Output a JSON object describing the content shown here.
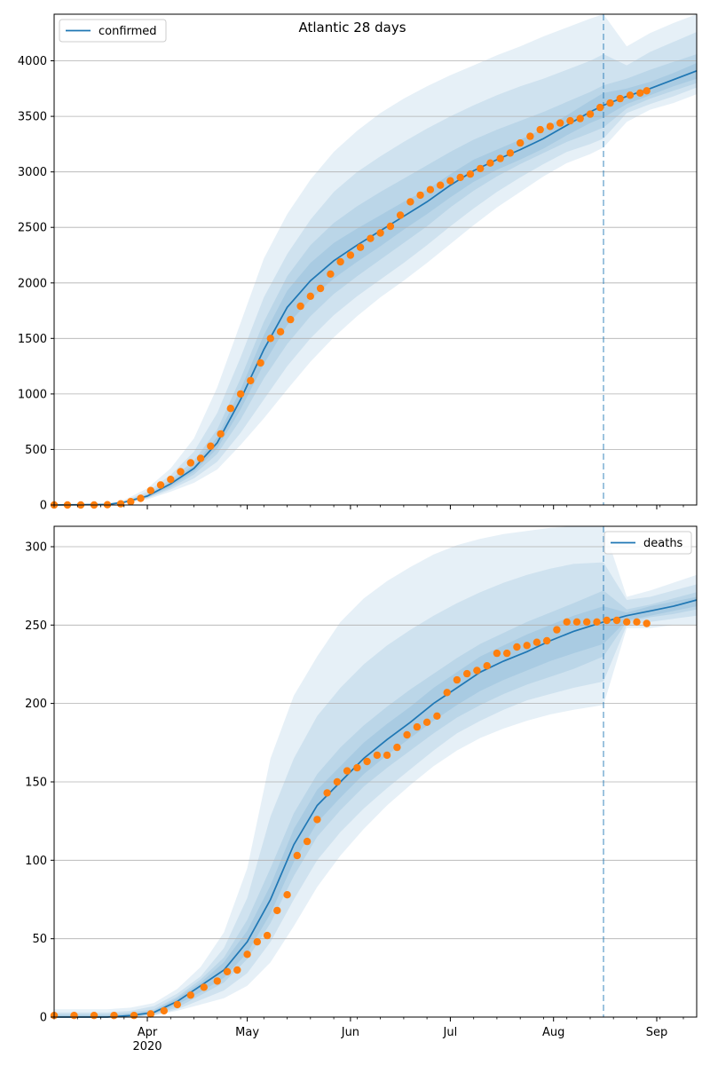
{
  "figure": {
    "title": "Atlantic 28 days"
  },
  "colors": {
    "model": "#1f77b4",
    "observed": "#ff7f0e",
    "band": "#1f77b4",
    "grid": "#b0b0b0",
    "forecast_line": "#1f77b4"
  },
  "x_axis": {
    "ticks": [
      {
        "date": "2020-04-01",
        "label": "Apr",
        "sublabel": "2020"
      },
      {
        "date": "2020-05-01",
        "label": "May",
        "sublabel": ""
      },
      {
        "date": "2020-06-01",
        "label": "Jun",
        "sublabel": ""
      },
      {
        "date": "2020-07-01",
        "label": "Jul",
        "sublabel": ""
      },
      {
        "date": "2020-08-01",
        "label": "Aug",
        "sublabel": ""
      },
      {
        "date": "2020-09-01",
        "label": "Sep",
        "sublabel": ""
      }
    ]
  },
  "chart_data": [
    {
      "type": "line",
      "title": "Atlantic 28 days",
      "xlim": [
        "2020-03-04",
        "2020-09-13"
      ],
      "ylim": [
        0,
        4420
      ],
      "yticks": [
        0,
        500,
        1000,
        1500,
        2000,
        2500,
        3000,
        3500,
        4000
      ],
      "grid": "horizontal",
      "legend": {
        "label": "confirmed",
        "placement": "top-left"
      },
      "forecast_start": "2020-08-16",
      "model": {
        "name": "confirmed",
        "x": [
          "2020-03-04",
          "2020-03-20",
          "2020-03-25",
          "2020-04-01",
          "2020-04-08",
          "2020-04-15",
          "2020-04-22",
          "2020-04-29",
          "2020-05-06",
          "2020-05-13",
          "2020-05-20",
          "2020-05-27",
          "2020-06-03",
          "2020-06-10",
          "2020-06-17",
          "2020-06-24",
          "2020-07-01",
          "2020-07-08",
          "2020-07-15",
          "2020-07-22",
          "2020-07-29",
          "2020-08-05",
          "2020-08-12",
          "2020-08-16",
          "2020-08-23",
          "2020-08-30",
          "2020-09-06",
          "2020-09-13"
        ],
        "y": [
          0,
          5,
          25,
          80,
          190,
          330,
          560,
          950,
          1400,
          1780,
          2020,
          2200,
          2340,
          2470,
          2600,
          2730,
          2880,
          3010,
          3110,
          3200,
          3300,
          3420,
          3540,
          3600,
          3680,
          3750,
          3830,
          3910
        ],
        "bands": [
          {
            "lower": [
              0,
              3,
              15,
              50,
              120,
              200,
              320,
              540,
              780,
              1040,
              1290,
              1510,
              1700,
              1870,
              2020,
              2180,
              2350,
              2520,
              2680,
              2820,
              2960,
              3080,
              3160,
              3220,
              3450,
              3560,
              3620,
              3700
            ],
            "upper": [
              0,
              10,
              45,
              150,
              330,
              600,
              1060,
              1640,
              2220,
              2620,
              2930,
              3180,
              3370,
              3530,
              3660,
              3770,
              3870,
              3960,
              4050,
              4130,
              4220,
              4300,
              4380,
              4420,
              4130,
              4250,
              4340,
              4420
            ]
          },
          {
            "lower": [
              0,
              3,
              18,
              60,
              140,
              240,
              390,
              650,
              950,
              1250,
              1500,
              1710,
              1880,
              2030,
              2180,
              2340,
              2510,
              2670,
              2820,
              2950,
              3070,
              3180,
              3250,
              3300,
              3530,
              3610,
              3680,
              3760
            ],
            "upper": [
              0,
              8,
              35,
              120,
              270,
              480,
              830,
              1330,
              1870,
              2260,
              2570,
              2820,
              3000,
              3140,
              3270,
              3390,
              3500,
              3600,
              3690,
              3770,
              3840,
              3920,
              4000,
              4060,
              3960,
              4080,
              4170,
              4260
            ]
          },
          {
            "lower": [
              0,
              4,
              20,
              65,
              155,
              275,
              460,
              770,
              1140,
              1450,
              1700,
              1900,
              2060,
              2210,
              2360,
              2510,
              2680,
              2830,
              2960,
              3070,
              3170,
              3270,
              3350,
              3400,
              3570,
              3660,
              3730,
              3800
            ],
            "upper": [
              0,
              7,
              30,
              100,
              230,
              400,
              680,
              1140,
              1650,
              2060,
              2340,
              2540,
              2690,
              2820,
              2940,
              3060,
              3180,
              3290,
              3380,
              3460,
              3540,
              3630,
              3720,
              3780,
              3840,
              3920,
              3990,
              4060
            ]
          },
          {
            "lower": [
              0,
              4,
              22,
              70,
              170,
              300,
              510,
              860,
              1270,
              1620,
              1850,
              2040,
              2190,
              2330,
              2480,
              2620,
              2770,
              2910,
              3020,
              3110,
              3210,
              3330,
              3440,
              3490,
              3610,
              3690,
              3770,
              3840
            ],
            "upper": [
              0,
              6,
              28,
              90,
              210,
              360,
              610,
              1040,
              1530,
              1930,
              2180,
              2360,
              2490,
              2610,
              2730,
              2840,
              2980,
              3110,
              3200,
              3290,
              3390,
              3510,
              3640,
              3710,
              3750,
              3810,
              3890,
              3980
            ]
          }
        ]
      },
      "observed": {
        "name": "observed",
        "x": [
          "2020-03-04",
          "2020-03-08",
          "2020-03-12",
          "2020-03-16",
          "2020-03-20",
          "2020-03-24",
          "2020-03-27",
          "2020-03-30",
          "2020-04-02",
          "2020-04-05",
          "2020-04-08",
          "2020-04-11",
          "2020-04-14",
          "2020-04-17",
          "2020-04-20",
          "2020-04-23",
          "2020-04-26",
          "2020-04-29",
          "2020-05-02",
          "2020-05-05",
          "2020-05-08",
          "2020-05-11",
          "2020-05-14",
          "2020-05-17",
          "2020-05-20",
          "2020-05-23",
          "2020-05-26",
          "2020-05-29",
          "2020-06-01",
          "2020-06-04",
          "2020-06-07",
          "2020-06-10",
          "2020-06-13",
          "2020-06-16",
          "2020-06-19",
          "2020-06-22",
          "2020-06-25",
          "2020-06-28",
          "2020-07-01",
          "2020-07-04",
          "2020-07-07",
          "2020-07-10",
          "2020-07-13",
          "2020-07-16",
          "2020-07-19",
          "2020-07-22",
          "2020-07-25",
          "2020-07-28",
          "2020-07-31",
          "2020-08-03",
          "2020-08-06",
          "2020-08-09",
          "2020-08-12",
          "2020-08-15",
          "2020-08-18",
          "2020-08-21",
          "2020-08-24",
          "2020-08-27",
          "2020-08-29"
        ],
        "y": [
          0,
          0,
          0,
          0,
          2,
          10,
          30,
          60,
          130,
          180,
          230,
          300,
          380,
          420,
          530,
          640,
          870,
          1000,
          1120,
          1280,
          1500,
          1560,
          1670,
          1790,
          1880,
          1950,
          2080,
          2190,
          2250,
          2320,
          2400,
          2450,
          2510,
          2610,
          2730,
          2790,
          2840,
          2880,
          2920,
          2950,
          2980,
          3030,
          3080,
          3120,
          3170,
          3260,
          3320,
          3380,
          3410,
          3440,
          3460,
          3480,
          3520,
          3580,
          3620,
          3660,
          3690,
          3710,
          3730
        ]
      }
    },
    {
      "type": "line",
      "title": "",
      "xlim": [
        "2020-03-04",
        "2020-09-13"
      ],
      "ylim": [
        0,
        313
      ],
      "yticks": [
        0,
        50,
        100,
        150,
        200,
        250,
        300
      ],
      "grid": "horizontal",
      "legend": {
        "label": "deaths",
        "placement": "top-right"
      },
      "forecast_start": "2020-08-16",
      "model": {
        "name": "deaths",
        "x": [
          "2020-03-04",
          "2020-03-20",
          "2020-03-27",
          "2020-04-03",
          "2020-04-10",
          "2020-04-17",
          "2020-04-24",
          "2020-05-01",
          "2020-05-08",
          "2020-05-15",
          "2020-05-22",
          "2020-05-29",
          "2020-06-05",
          "2020-06-12",
          "2020-06-19",
          "2020-06-26",
          "2020-07-03",
          "2020-07-10",
          "2020-07-17",
          "2020-07-24",
          "2020-07-31",
          "2020-08-07",
          "2020-08-16",
          "2020-08-23",
          "2020-08-30",
          "2020-09-06",
          "2020-09-13"
        ],
        "y": [
          0,
          0,
          1,
          3,
          10,
          20,
          30,
          48,
          75,
          110,
          135,
          150,
          165,
          177,
          188,
          200,
          210,
          220,
          227,
          233,
          240,
          246,
          252,
          256,
          259,
          262,
          266
        ],
        "bands": [
          {
            "lower": [
              0,
              0,
              0,
              1,
              4,
              8,
              12,
              20,
              35,
              58,
              83,
              103,
              120,
              135,
              148,
              160,
              170,
              178,
              184,
              189,
              193,
              196,
              199,
              248,
              248,
              250,
              250
            ],
            "upper": [
              5,
              5,
              6,
              9,
              18,
              32,
              54,
              95,
              165,
              205,
              230,
              252,
              267,
              278,
              287,
              295,
              301,
              305,
              308,
              310,
              312,
              313,
              313,
              268,
              272,
              277,
              282
            ]
          },
          {
            "lower": [
              0,
              0,
              0,
              1,
              5,
              11,
              17,
              28,
              48,
              75,
              100,
              118,
              133,
              146,
              158,
              170,
              181,
              189,
              196,
              202,
              206,
              210,
              214,
              250,
              252,
              254,
              256
            ],
            "upper": [
              3,
              3,
              4,
              7,
              15,
              26,
              44,
              76,
              128,
              165,
              192,
              210,
              225,
              237,
              247,
              256,
              264,
              271,
              277,
              282,
              286,
              289,
              290,
              266,
              268,
              272,
              276
            ]
          },
          {
            "lower": [
              0,
              0,
              0,
              2,
              6,
              14,
              22,
              37,
              60,
              90,
              115,
              132,
              147,
              159,
              170,
              181,
              191,
              199,
              206,
              212,
              217,
              222,
              230,
              252,
              255,
              257,
              260
            ],
            "upper": [
              2,
              2,
              3,
              5,
              13,
              24,
              38,
              62,
              95,
              130,
              155,
              172,
              186,
              198,
              209,
              219,
              229,
              238,
              245,
              252,
              258,
              264,
              272,
              260,
              263,
              267,
              271
            ]
          },
          {
            "lower": [
              0,
              0,
              0,
              2,
              8,
              16,
              25,
              41,
              66,
              99,
              124,
              140,
              155,
              167,
              178,
              189,
              199,
              208,
              215,
              221,
              227,
              232,
              238,
              253,
              256,
              259,
              262
            ],
            "upper": [
              1,
              1,
              2,
              4,
              12,
              22,
              35,
              55,
              84,
              120,
              145,
              160,
              175,
              187,
              198,
              210,
              220,
              230,
              237,
              244,
              250,
              256,
              262,
              258,
              262,
              265,
              268
            ]
          }
        ]
      },
      "observed": {
        "name": "observed",
        "x": [
          "2020-03-04",
          "2020-03-10",
          "2020-03-16",
          "2020-03-22",
          "2020-03-28",
          "2020-04-02",
          "2020-04-06",
          "2020-04-10",
          "2020-04-14",
          "2020-04-18",
          "2020-04-22",
          "2020-04-25",
          "2020-04-28",
          "2020-05-01",
          "2020-05-04",
          "2020-05-07",
          "2020-05-10",
          "2020-05-13",
          "2020-05-16",
          "2020-05-19",
          "2020-05-22",
          "2020-05-25",
          "2020-05-28",
          "2020-05-31",
          "2020-06-03",
          "2020-06-06",
          "2020-06-09",
          "2020-06-12",
          "2020-06-15",
          "2020-06-18",
          "2020-06-21",
          "2020-06-24",
          "2020-06-27",
          "2020-06-30",
          "2020-07-03",
          "2020-07-06",
          "2020-07-09",
          "2020-07-12",
          "2020-07-15",
          "2020-07-18",
          "2020-07-21",
          "2020-07-24",
          "2020-07-27",
          "2020-07-30",
          "2020-08-02",
          "2020-08-05",
          "2020-08-08",
          "2020-08-11",
          "2020-08-14",
          "2020-08-17",
          "2020-08-20",
          "2020-08-23",
          "2020-08-26",
          "2020-08-29"
        ],
        "y": [
          1,
          1,
          1,
          1,
          1,
          2,
          4,
          8,
          14,
          19,
          23,
          29,
          30,
          40,
          48,
          52,
          68,
          78,
          103,
          112,
          126,
          143,
          150,
          157,
          159,
          163,
          167,
          167,
          172,
          180,
          185,
          188,
          192,
          207,
          215,
          219,
          221,
          224,
          232,
          232,
          236,
          237,
          239,
          240,
          247,
          252,
          252,
          252,
          252,
          253,
          253,
          252,
          252,
          251
        ]
      }
    }
  ]
}
